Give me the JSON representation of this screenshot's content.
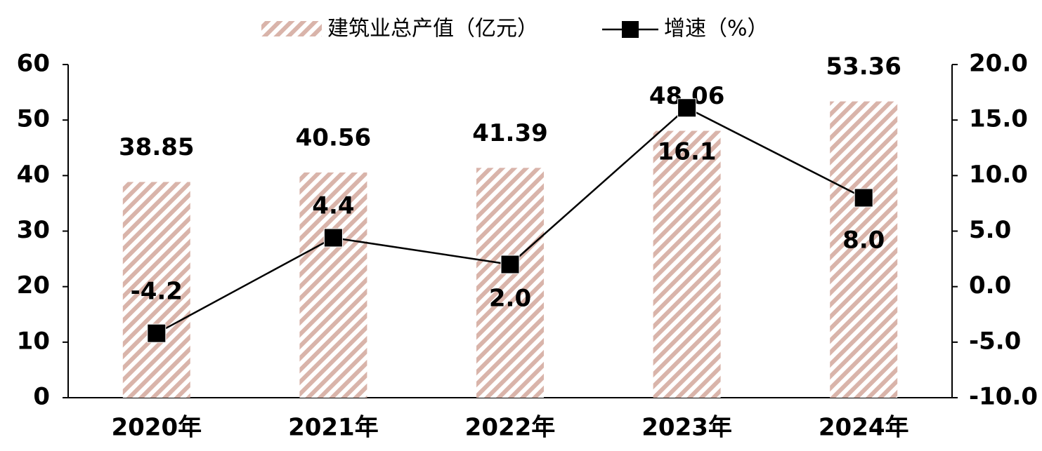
{
  "chart_data": {
    "type": "bar_line",
    "categories": [
      "2020年",
      "2021年",
      "2022年",
      "2023年",
      "2024年"
    ],
    "series": [
      {
        "name": "建筑业总产值（亿元）",
        "type": "bar",
        "color": "#d9b4aa",
        "values": [
          38.85,
          40.56,
          41.39,
          48.06,
          53.36
        ]
      },
      {
        "name": "增速（%）",
        "type": "line",
        "axis": "y2",
        "color": "#000000",
        "values": [
          -4.2,
          4.4,
          2.0,
          16.1,
          8.0
        ],
        "value_labels": [
          "-4.2",
          "4.4",
          "2.0",
          "16.1",
          "8.0"
        ]
      }
    ],
    "ylim": [
      0,
      60
    ],
    "yticks": [
      0,
      10,
      20,
      30,
      40,
      50,
      60
    ],
    "y2lim": [
      -10,
      20
    ],
    "y2ticks": [
      {
        "value": -10,
        "label": "-10.0"
      },
      {
        "value": -5,
        "label": "-5.0"
      },
      {
        "value": 0,
        "label": "0.0"
      },
      {
        "value": 5,
        "label": "5.0"
      },
      {
        "value": 10,
        "label": "10.0"
      },
      {
        "value": 15,
        "label": "15.0"
      },
      {
        "value": 20,
        "label": "20.0"
      }
    ],
    "legend": "top"
  }
}
